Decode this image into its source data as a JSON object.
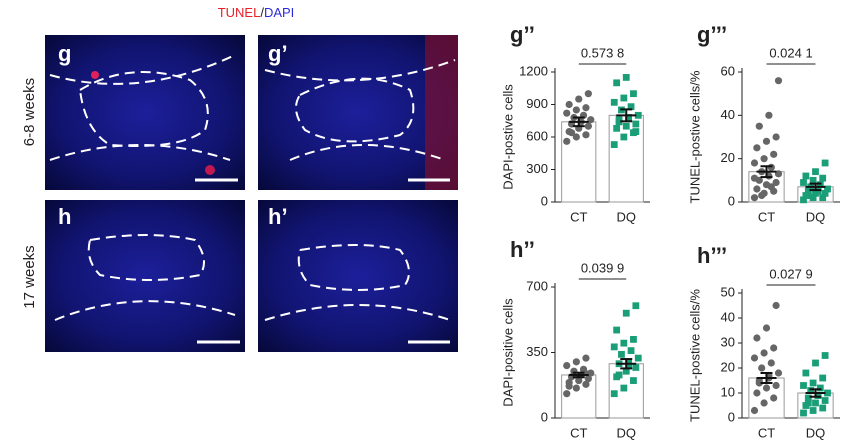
{
  "images": {
    "legend": [
      "TUNEL",
      "/",
      "DAPI"
    ],
    "rows": [
      "6-8 weeks",
      "17 weeks"
    ],
    "panels": [
      "g",
      "g’",
      "h",
      "h’"
    ]
  },
  "chart_data": [
    {
      "type": "bar",
      "title": "g’’",
      "y_label": "DAPI-postive cells",
      "annotation": "0.573 8",
      "categories": [
        "CT",
        "DQ"
      ],
      "values": [
        740,
        800
      ],
      "errors": [
        40,
        55
      ],
      "points": [
        [
          560,
          600,
          620,
          650,
          680,
          700,
          720,
          740,
          760,
          780,
          800,
          820,
          850,
          870,
          900,
          950,
          1000,
          640
        ],
        [
          530,
          600,
          640,
          680,
          700,
          720,
          760,
          780,
          800,
          850,
          880,
          920,
          960,
          1000,
          1100,
          1150,
          650,
          740
        ]
      ],
      "point_colors": [
        "#666666",
        "#1a9e77"
      ],
      "ylim": [
        0,
        1200
      ],
      "yticks": [
        0,
        300,
        600,
        900,
        1200
      ]
    },
    {
      "type": "bar",
      "title": "g’’’",
      "y_label": "TUNEL-postive cells/%",
      "annotation": "0.024 1",
      "categories": [
        "CT",
        "DQ"
      ],
      "values": [
        14,
        7
      ],
      "errors": [
        2.5,
        1.5
      ],
      "points": [
        [
          2,
          4,
          5,
          6,
          8,
          9,
          10,
          12,
          13,
          14,
          16,
          18,
          20,
          22,
          25,
          28,
          30,
          35,
          40,
          56,
          3,
          7,
          11
        ],
        [
          1,
          2,
          2,
          3,
          4,
          4,
          5,
          6,
          6,
          7,
          8,
          9,
          10,
          11,
          12,
          14,
          18,
          3,
          5
        ]
      ],
      "point_colors": [
        "#666666",
        "#1a9e77"
      ],
      "ylim": [
        0,
        60
      ],
      "yticks": [
        0,
        20,
        40,
        60
      ]
    },
    {
      "type": "bar",
      "title": "h’’",
      "y_label": "DAPI-positive cells",
      "annotation": "0.039 9",
      "categories": [
        "CT",
        "DQ"
      ],
      "values": [
        230,
        290
      ],
      "errors": [
        12,
        25
      ],
      "points": [
        [
          130,
          160,
          180,
          190,
          200,
          210,
          220,
          230,
          240,
          250,
          260,
          280,
          300,
          320,
          170,
          215,
          235
        ],
        [
          130,
          160,
          200,
          220,
          250,
          270,
          290,
          300,
          320,
          340,
          360,
          380,
          400,
          420,
          470,
          560,
          600,
          230,
          280
        ]
      ],
      "point_colors": [
        "#666666",
        "#1a9e77"
      ],
      "ylim": [
        0,
        700
      ],
      "yticks": [
        0,
        350,
        700
      ]
    },
    {
      "type": "bar",
      "title": "h’’’",
      "y_label": "TUNEL-postive cells/%",
      "annotation": "0.027 9",
      "categories": [
        "CT",
        "DQ"
      ],
      "values": [
        16,
        10
      ],
      "errors": [
        2,
        1.5
      ],
      "points": [
        [
          3,
          6,
          8,
          10,
          12,
          13,
          15,
          16,
          18,
          20,
          22,
          24,
          26,
          28,
          32,
          36,
          45,
          14,
          17
        ],
        [
          2,
          3,
          4,
          5,
          6,
          7,
          8,
          9,
          10,
          11,
          12,
          13,
          14,
          16,
          18,
          22,
          25,
          6,
          9
        ]
      ],
      "point_colors": [
        "#666666",
        "#1a9e77"
      ],
      "ylim": [
        0,
        50
      ],
      "yticks": [
        0,
        10,
        20,
        30,
        40,
        50
      ]
    }
  ]
}
